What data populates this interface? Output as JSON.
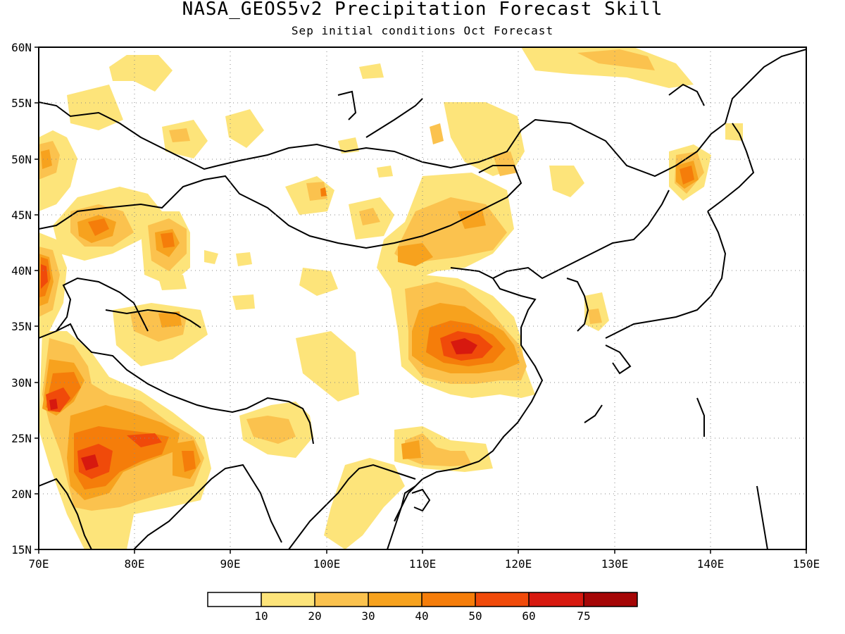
{
  "title": "NASA_GEOS5v2 Precipitation Forecast Skill",
  "subtitle": "Sep initial conditions  Oct Forecast",
  "map": {
    "lon_range": [
      70,
      150
    ],
    "lat_range": [
      15,
      60
    ],
    "lon_ticks": [
      "70E",
      "80E",
      "90E",
      "100E",
      "110E",
      "120E",
      "130E",
      "140E",
      "150E"
    ],
    "lat_ticks": [
      "60N",
      "55N",
      "50N",
      "45N",
      "40N",
      "35N",
      "30N",
      "25N",
      "20N",
      "15N"
    ],
    "grid": "dotted"
  },
  "colorbar": {
    "levels": [
      "10",
      "20",
      "30",
      "40",
      "50",
      "60",
      "75"
    ],
    "colors": [
      "#ffffff",
      "#fde47a",
      "#fbc24e",
      "#f7a21e",
      "#f57d0a",
      "#f04a0a",
      "#d7190f",
      "#a50606"
    ]
  },
  "colors": {
    "c1": "#fde47a",
    "c2": "#fbc24e",
    "c3": "#f7a21e",
    "c4": "#f57d0a",
    "c5": "#f04a0a",
    "c6": "#d7190f"
  }
}
